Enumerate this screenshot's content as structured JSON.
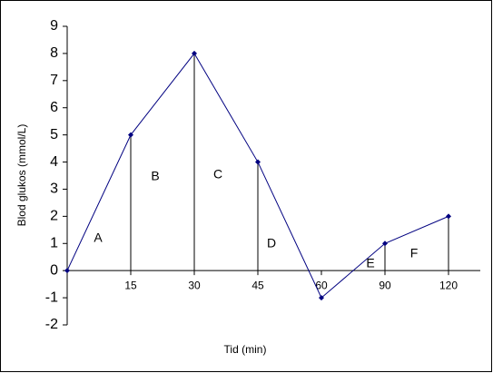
{
  "chart_data": {
    "type": "line",
    "x_label": "Tid (min)",
    "y_label": "Blod glukos (mmol/L)",
    "categories": [
      null,
      "15",
      "30",
      "45",
      "60",
      "90",
      "120"
    ],
    "series": [
      {
        "color": "#000080",
        "values": [
          0,
          5,
          8,
          4,
          -1,
          1,
          2
        ]
      }
    ],
    "ylim": [
      -2,
      9
    ],
    "yticks": [
      -2,
      -1,
      0,
      1,
      2,
      3,
      4,
      5,
      6,
      7,
      8,
      9
    ],
    "drop_lines": true,
    "annotations": [
      "A",
      "B",
      "C",
      "D",
      "E",
      "F"
    ]
  }
}
